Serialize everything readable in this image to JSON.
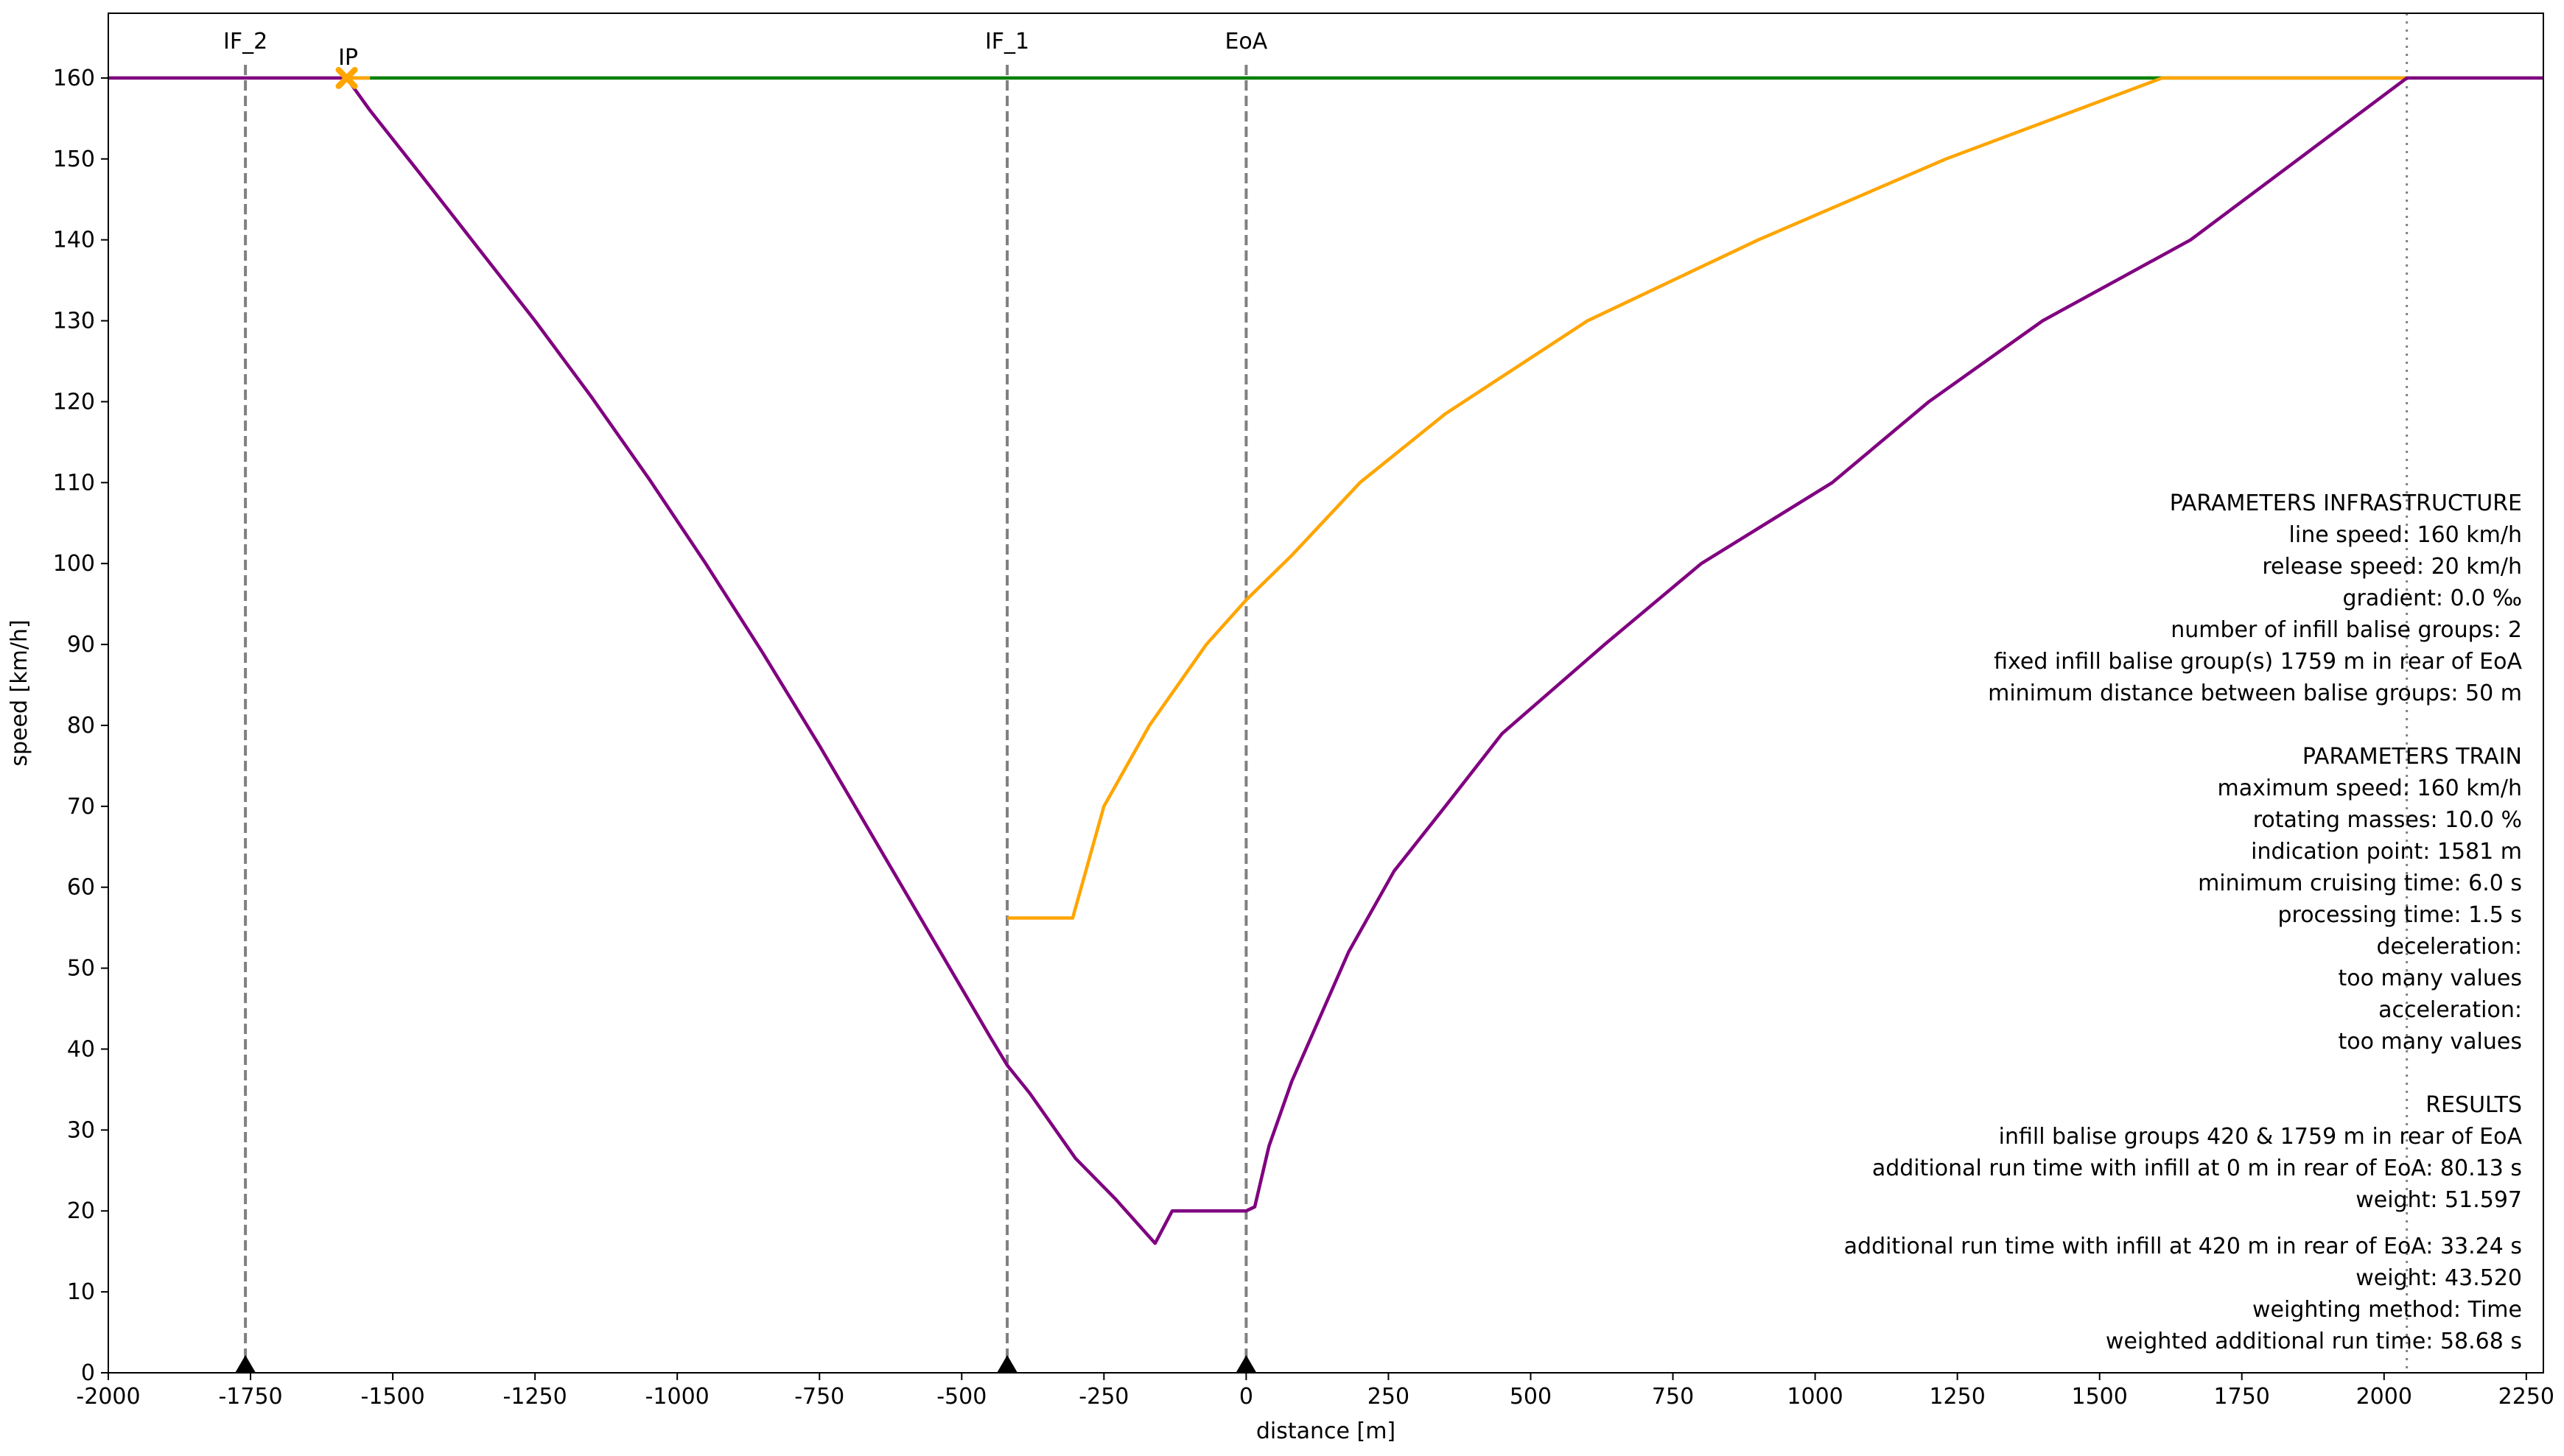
{
  "chart_data": {
    "type": "line",
    "xlabel": "distance [m]",
    "ylabel": "speed [km/h]",
    "xlim": [
      -2000,
      2280
    ],
    "ylim": [
      0,
      168
    ],
    "xticks": [
      -2000,
      -1750,
      -1500,
      -1250,
      -1000,
      -750,
      -500,
      -250,
      0,
      250,
      500,
      750,
      1000,
      1250,
      1500,
      1750,
      2000,
      2250
    ],
    "yticks": [
      0,
      10,
      20,
      30,
      40,
      50,
      60,
      70,
      80,
      90,
      100,
      110,
      120,
      130,
      140,
      150,
      160
    ],
    "grid": false,
    "series": [
      {
        "color": "#008000",
        "x": [
          -1581,
          2040
        ],
        "y": [
          160,
          160
        ]
      },
      {
        "color": "#FFA500",
        "x": [
          -1581,
          -1560,
          -1540
        ],
        "y": [
          160,
          160,
          160
        ]
      },
      {
        "color": "#FFA500",
        "x": [
          -420,
          -305,
          -250,
          -170,
          -70,
          0,
          80,
          200,
          350,
          600,
          900,
          1230,
          1610,
          2040
        ],
        "y": [
          56.2,
          56.2,
          70,
          80,
          90,
          95.5,
          101,
          110,
          118.5,
          130,
          140,
          150,
          160,
          160
        ]
      },
      {
        "color": "#800080",
        "x": [
          -2000,
          -1581,
          -1540,
          -1450,
          -1350,
          -1250,
          -1150,
          -1050,
          -950,
          -850,
          -750,
          -650,
          -550,
          -450,
          -420,
          -380,
          -300,
          -230,
          -160,
          -130,
          0,
          15,
          40,
          80,
          130,
          180,
          260,
          350,
          450,
          630,
          800,
          1030,
          1200,
          1400,
          1660,
          1850,
          2040,
          2280
        ],
        "y": [
          160,
          160,
          156,
          148,
          139,
          130,
          120.5,
          110.5,
          100,
          89,
          77.5,
          65.5,
          53.5,
          41.5,
          38,
          34.5,
          26.5,
          21.5,
          16,
          20,
          20,
          20.5,
          28,
          36,
          44,
          52,
          62,
          70,
          79,
          90,
          100,
          110,
          120,
          130,
          140,
          150,
          160,
          160
        ]
      }
    ],
    "vlines": [
      {
        "x": -1759,
        "label": "IF_2",
        "style": "dashed"
      },
      {
        "x": -420,
        "label": "IF_1",
        "style": "dashed"
      },
      {
        "x": 0,
        "label": "EoA",
        "style": "dashed"
      },
      {
        "x": 2040,
        "label": "",
        "style": "dotted"
      }
    ],
    "balise_markers": [
      -1759,
      -420,
      0
    ],
    "indication_point": {
      "x": -1581,
      "y": 160,
      "label": "IP",
      "color": "#FFA500"
    },
    "annotation_lines": [
      "PARAMETERS INFRASTRUCTURE",
      "line speed: 160 km/h",
      "release speed: 20 km/h",
      "gradient: 0.0 ‰",
      "number of infill balise groups: 2",
      "fixed infill balise group(s) 1759 m in rear of EoA",
      "minimum distance between balise groups: 50 m",
      "",
      "PARAMETERS TRAIN",
      "maximum speed: 160 km/h",
      "rotating masses: 10.0 %",
      "indication point: 1581 m",
      "minimum cruising time: 6.0 s",
      "processing time: 1.5 s",
      "deceleration:",
      "too many values",
      "acceleration:",
      "too many values",
      "",
      "RESULTS",
      "infill balise groups 420 & 1759 m in rear of EoA",
      "additional run time with infill at 0 m in rear of EoA: 80.13 s",
      "weight: 51.597",
      "",
      "additional run time with infill at 420 m in rear of EoA: 33.24 s",
      "weight: 43.520",
      "weighting method: Time",
      "weighted additional run time: 58.68 s"
    ]
  }
}
